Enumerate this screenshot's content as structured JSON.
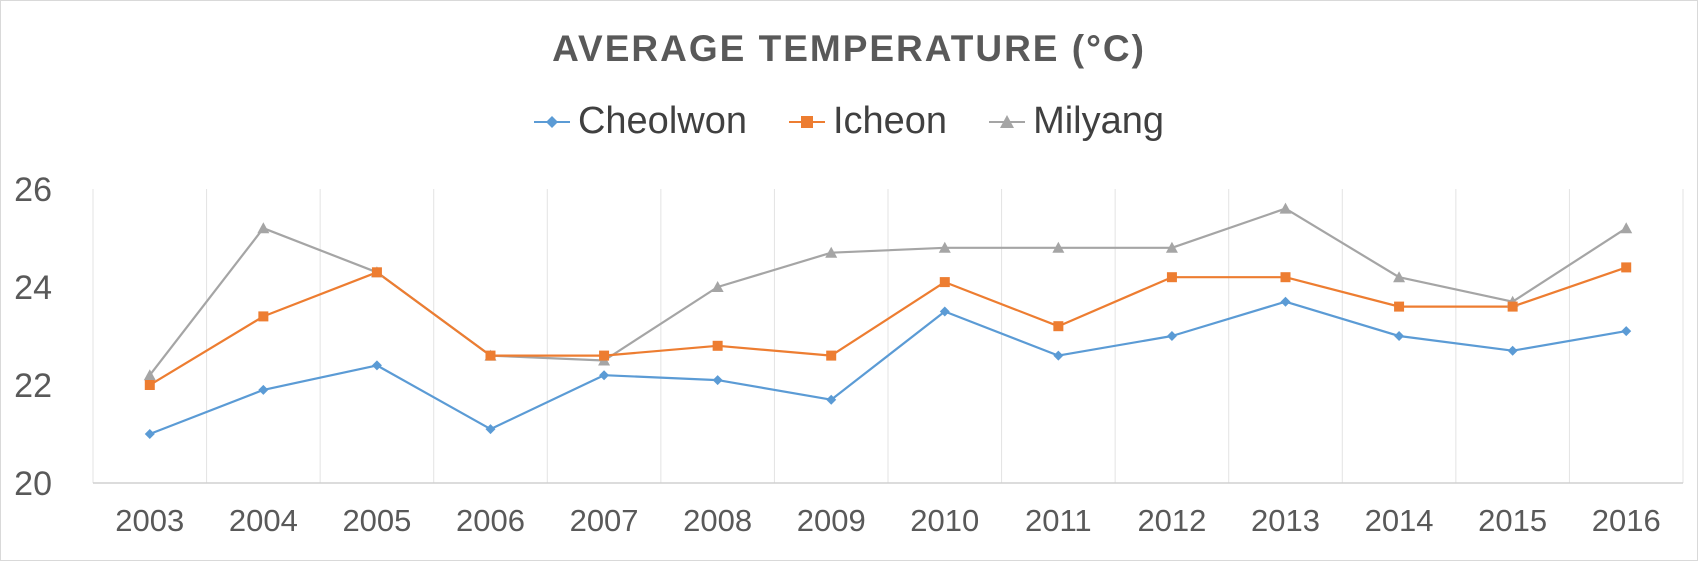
{
  "chart_data": {
    "type": "line",
    "title": "AVERAGE TEMPERATURE (°C)",
    "xlabel": "",
    "ylabel": "",
    "categories": [
      "2003",
      "2004",
      "2005",
      "2006",
      "2007",
      "2008",
      "2009",
      "2010",
      "2011",
      "2012",
      "2013",
      "2014",
      "2015",
      "2016"
    ],
    "y_ticks": [
      "20",
      "22",
      "24",
      "26"
    ],
    "ylim": [
      20,
      26
    ],
    "grid": "vertical",
    "legend_position": "top",
    "series": [
      {
        "name": "Cheolwon",
        "color": "#5b9bd5",
        "marker": "diamond",
        "values": [
          21.0,
          21.9,
          22.4,
          21.1,
          22.2,
          22.1,
          21.7,
          23.5,
          22.6,
          23.0,
          23.7,
          23.0,
          22.7,
          23.1
        ]
      },
      {
        "name": "Icheon",
        "color": "#ed7d31",
        "marker": "square",
        "values": [
          22.0,
          23.4,
          24.3,
          22.6,
          22.6,
          22.8,
          22.6,
          24.1,
          23.2,
          24.2,
          24.2,
          23.6,
          23.6,
          24.4
        ]
      },
      {
        "name": "Milyang",
        "color": "#a5a5a5",
        "marker": "triangle",
        "values": [
          22.2,
          25.2,
          24.3,
          22.6,
          22.5,
          24.0,
          24.7,
          24.8,
          24.8,
          24.8,
          25.6,
          24.2,
          23.7,
          25.2
        ]
      }
    ]
  }
}
